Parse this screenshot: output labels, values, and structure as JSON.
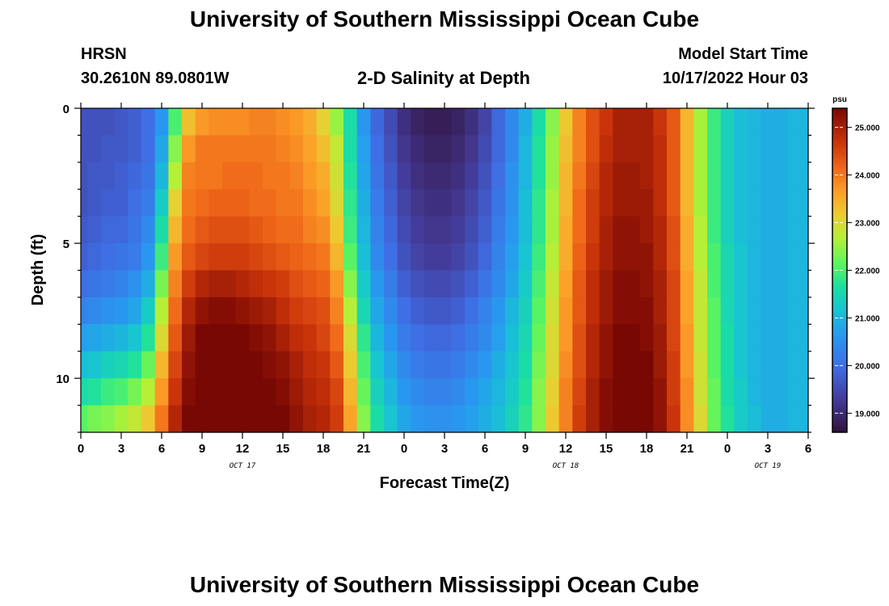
{
  "header": {
    "title": "University of Southern Mississippi Ocean Cube",
    "station": "HRSN",
    "coords": "30.2610N  89.0801W",
    "subtitle": "2-D Salinity at Depth",
    "model_label": "Model Start Time",
    "model_time": "10/17/2022 Hour 03"
  },
  "footer": {
    "title": "University of Southern Mississippi Ocean Cube"
  },
  "chart_data": {
    "type": "heatmap",
    "title": "2-D Salinity at Depth",
    "xlabel": "Forecast Time(Z)",
    "ylabel": "Depth (ft)",
    "x_unit": "hours from Oct 17 00Z",
    "xlim": [
      0,
      54
    ],
    "ylim": [
      0,
      12
    ],
    "x_ticks": [
      {
        "v": 0,
        "label": "0"
      },
      {
        "v": 3,
        "label": "3"
      },
      {
        "v": 6,
        "label": "6"
      },
      {
        "v": 9,
        "label": "9"
      },
      {
        "v": 12,
        "label": "12"
      },
      {
        "v": 15,
        "label": "15"
      },
      {
        "v": 18,
        "label": "18"
      },
      {
        "v": 21,
        "label": "21"
      },
      {
        "v": 24,
        "label": "0"
      },
      {
        "v": 27,
        "label": "3"
      },
      {
        "v": 30,
        "label": "6"
      },
      {
        "v": 33,
        "label": "9"
      },
      {
        "v": 36,
        "label": "12"
      },
      {
        "v": 39,
        "label": "15"
      },
      {
        "v": 42,
        "label": "18"
      },
      {
        "v": 45,
        "label": "21"
      },
      {
        "v": 48,
        "label": "0"
      },
      {
        "v": 51,
        "label": "3"
      },
      {
        "v": 54,
        "label": "6"
      }
    ],
    "date_labels": [
      {
        "v": 12,
        "label": "OCT 17"
      },
      {
        "v": 36,
        "label": "OCT 18"
      },
      {
        "v": 51,
        "label": "OCT 19"
      }
    ],
    "y_ticks": [
      {
        "v": 0,
        "label": "0"
      },
      {
        "v": 5,
        "label": "5"
      },
      {
        "v": 10,
        "label": "10"
      }
    ],
    "colorbar": {
      "unit": "psu",
      "min": 18.6,
      "max": 25.4,
      "ticks": [
        {
          "v": 19.0,
          "label": "19.000"
        },
        {
          "v": 20.0,
          "label": "20.000"
        },
        {
          "v": 21.0,
          "label": "21.000"
        },
        {
          "v": 22.0,
          "label": "22.000"
        },
        {
          "v": 23.0,
          "label": "23.000"
        },
        {
          "v": 24.0,
          "label": "24.000"
        },
        {
          "v": 25.0,
          "label": "25.000"
        }
      ]
    },
    "grid": {
      "x_hours": [
        0,
        1,
        2,
        3,
        4,
        5,
        6,
        7,
        8,
        9,
        10,
        11,
        12,
        13,
        14,
        15,
        16,
        17,
        18,
        19,
        20,
        21,
        22,
        23,
        24,
        25,
        26,
        27,
        28,
        29,
        30,
        31,
        32,
        33,
        34,
        35,
        36,
        37,
        38,
        39,
        40,
        41,
        42,
        43,
        44,
        45,
        46,
        47,
        48,
        49,
        50,
        51,
        52,
        53,
        54
      ],
      "depth_ft": [
        0.5,
        1.5,
        2.5,
        3.5,
        4.5,
        5.5,
        6.5,
        7.5,
        8.5,
        9.5,
        10.5,
        11.5
      ],
      "salinity_psu": [
        [
          19.6,
          19.6,
          19.6,
          19.7,
          19.8,
          20.0,
          20.6,
          22.0,
          23.3,
          23.7,
          23.8,
          23.8,
          23.8,
          23.9,
          23.9,
          23.8,
          23.7,
          23.5,
          23.1,
          22.5,
          21.6,
          20.6,
          19.9,
          19.5,
          19.1,
          18.9,
          18.8,
          18.8,
          18.9,
          19.1,
          19.4,
          19.9,
          20.4,
          20.9,
          21.6,
          22.4,
          23.2,
          23.9,
          24.4,
          24.7,
          25.0,
          25.0,
          25.0,
          24.7,
          24.3,
          23.4,
          22.6,
          21.9,
          21.4,
          21.1,
          21.0,
          20.9,
          20.9,
          21.0,
          21.0
        ],
        [
          19.6,
          19.6,
          19.7,
          19.7,
          19.8,
          20.0,
          20.8,
          22.4,
          23.7,
          24.0,
          24.0,
          24.0,
          24.0,
          24.0,
          24.0,
          23.9,
          23.8,
          23.6,
          23.3,
          22.8,
          21.6,
          20.7,
          20.0,
          19.6,
          19.2,
          19.0,
          18.9,
          18.9,
          19.0,
          19.2,
          19.5,
          19.9,
          20.4,
          21.0,
          21.7,
          22.5,
          23.3,
          23.9,
          24.4,
          24.8,
          25.0,
          25.0,
          25.0,
          24.8,
          24.3,
          23.4,
          22.6,
          21.9,
          21.4,
          21.1,
          21.0,
          20.9,
          20.9,
          21.0,
          21.0
        ],
        [
          19.6,
          19.7,
          19.7,
          19.8,
          19.9,
          20.1,
          21.0,
          22.7,
          23.9,
          24.0,
          24.0,
          24.1,
          24.1,
          24.1,
          24.0,
          24.0,
          23.9,
          23.7,
          23.5,
          22.9,
          21.7,
          20.8,
          20.1,
          19.7,
          19.3,
          19.1,
          19.0,
          19.0,
          19.1,
          19.3,
          19.6,
          20.0,
          20.5,
          21.0,
          21.7,
          22.5,
          23.4,
          24.0,
          24.5,
          24.9,
          25.1,
          25.1,
          25.0,
          24.8,
          24.3,
          23.4,
          22.6,
          21.9,
          21.4,
          21.1,
          21.0,
          20.9,
          20.9,
          21.0,
          21.0
        ],
        [
          19.6,
          19.7,
          19.8,
          19.8,
          20.0,
          20.2,
          21.3,
          23.1,
          24.0,
          24.1,
          24.2,
          24.2,
          24.2,
          24.1,
          24.1,
          24.0,
          24.0,
          23.8,
          23.6,
          23.0,
          21.8,
          20.9,
          20.2,
          19.8,
          19.4,
          19.2,
          19.1,
          19.1,
          19.2,
          19.4,
          19.7,
          20.1,
          20.5,
          21.1,
          21.8,
          22.6,
          23.4,
          24.1,
          24.6,
          24.9,
          25.1,
          25.1,
          25.1,
          24.8,
          24.3,
          23.4,
          22.6,
          21.9,
          21.4,
          21.1,
          21.0,
          20.9,
          20.9,
          21.0,
          21.0
        ],
        [
          19.7,
          19.8,
          19.9,
          19.9,
          20.1,
          20.4,
          21.6,
          23.4,
          24.1,
          24.3,
          24.4,
          24.4,
          24.4,
          24.3,
          24.2,
          24.1,
          24.1,
          23.9,
          23.8,
          23.2,
          21.9,
          21.0,
          20.3,
          19.9,
          19.5,
          19.3,
          19.2,
          19.2,
          19.3,
          19.5,
          19.8,
          20.2,
          20.6,
          21.1,
          21.8,
          22.6,
          23.5,
          24.1,
          24.6,
          25.0,
          25.2,
          25.2,
          25.1,
          24.9,
          24.4,
          23.5,
          22.7,
          21.9,
          21.4,
          21.1,
          21.0,
          20.9,
          20.9,
          21.0,
          21.0
        ],
        [
          19.8,
          19.9,
          20.0,
          20.1,
          20.2,
          20.6,
          21.9,
          23.7,
          24.3,
          24.5,
          24.6,
          24.6,
          24.6,
          24.5,
          24.4,
          24.3,
          24.2,
          24.1,
          24.0,
          23.4,
          22.1,
          21.1,
          20.4,
          20.0,
          19.6,
          19.4,
          19.3,
          19.3,
          19.4,
          19.6,
          19.9,
          20.3,
          20.7,
          21.2,
          21.9,
          22.7,
          23.5,
          24.2,
          24.7,
          25.0,
          25.2,
          25.2,
          25.2,
          24.9,
          24.4,
          23.5,
          22.7,
          22.0,
          21.5,
          21.2,
          21.0,
          20.9,
          20.9,
          21.0,
          21.0
        ],
        [
          20.0,
          20.1,
          20.2,
          20.3,
          20.5,
          20.9,
          22.3,
          23.9,
          24.6,
          24.9,
          25.0,
          25.0,
          24.9,
          24.8,
          24.7,
          24.6,
          24.4,
          24.3,
          24.2,
          23.7,
          22.4,
          21.3,
          20.6,
          20.2,
          19.8,
          19.6,
          19.5,
          19.5,
          19.6,
          19.8,
          20.1,
          20.4,
          20.8,
          21.3,
          22.0,
          22.8,
          23.6,
          24.3,
          24.8,
          25.1,
          25.3,
          25.3,
          25.2,
          25.0,
          24.5,
          23.6,
          22.8,
          22.0,
          21.5,
          21.2,
          21.0,
          20.9,
          20.9,
          21.0,
          21.0
        ],
        [
          20.3,
          20.4,
          20.5,
          20.6,
          20.8,
          21.3,
          22.7,
          24.1,
          24.9,
          25.2,
          25.3,
          25.3,
          25.2,
          25.1,
          25.0,
          24.8,
          24.6,
          24.5,
          24.4,
          23.9,
          22.7,
          21.5,
          20.8,
          20.4,
          20.0,
          19.8,
          19.7,
          19.7,
          19.8,
          20.0,
          20.3,
          20.6,
          21.0,
          21.4,
          22.1,
          22.9,
          23.7,
          24.3,
          24.8,
          25.1,
          25.3,
          25.3,
          25.3,
          25.0,
          24.5,
          23.6,
          22.8,
          22.1,
          21.5,
          21.2,
          21.0,
          20.9,
          20.9,
          21.0,
          21.0
        ],
        [
          20.7,
          20.8,
          20.9,
          21.0,
          21.2,
          21.7,
          23.0,
          24.3,
          25.1,
          25.4,
          25.4,
          25.4,
          25.4,
          25.3,
          25.2,
          25.0,
          24.8,
          24.7,
          24.5,
          24.1,
          23.0,
          21.8,
          21.0,
          20.6,
          20.2,
          20.0,
          19.9,
          19.9,
          20.0,
          20.2,
          20.4,
          20.7,
          21.1,
          21.5,
          22.2,
          23.0,
          23.7,
          24.4,
          24.9,
          25.2,
          25.4,
          25.4,
          25.3,
          25.1,
          24.5,
          23.7,
          22.8,
          22.1,
          21.6,
          21.2,
          21.0,
          20.9,
          20.9,
          21.0,
          21.0
        ],
        [
          21.1,
          21.2,
          21.4,
          21.5,
          21.7,
          22.2,
          23.4,
          24.5,
          25.2,
          25.4,
          25.5,
          25.5,
          25.5,
          25.4,
          25.3,
          25.2,
          25.0,
          24.8,
          24.7,
          24.3,
          23.2,
          22.0,
          21.2,
          20.8,
          20.4,
          20.2,
          20.1,
          20.1,
          20.2,
          20.4,
          20.6,
          20.9,
          21.2,
          21.6,
          22.3,
          23.0,
          23.8,
          24.4,
          24.9,
          25.2,
          25.4,
          25.4,
          25.4,
          25.1,
          24.6,
          23.7,
          22.9,
          22.1,
          21.6,
          21.2,
          21.0,
          20.9,
          20.9,
          21.0,
          21.0
        ],
        [
          21.6,
          21.7,
          21.9,
          22.0,
          22.3,
          22.7,
          23.7,
          24.7,
          25.3,
          25.5,
          25.5,
          25.5,
          25.5,
          25.5,
          25.4,
          25.3,
          25.1,
          24.9,
          24.8,
          24.5,
          23.4,
          22.2,
          21.4,
          21.0,
          20.6,
          20.4,
          20.3,
          20.3,
          20.4,
          20.6,
          20.8,
          21.0,
          21.3,
          21.7,
          22.4,
          23.1,
          23.9,
          24.5,
          25.0,
          25.3,
          25.4,
          25.4,
          25.4,
          25.2,
          24.6,
          23.8,
          22.9,
          22.2,
          21.6,
          21.3,
          21.0,
          20.9,
          20.9,
          21.0,
          21.0
        ],
        [
          22.1,
          22.3,
          22.4,
          22.6,
          22.8,
          23.2,
          24.0,
          24.9,
          25.4,
          25.5,
          25.6,
          25.6,
          25.6,
          25.6,
          25.5,
          25.4,
          25.2,
          25.0,
          24.9,
          24.6,
          23.6,
          22.4,
          21.6,
          21.2,
          20.8,
          20.6,
          20.5,
          20.5,
          20.6,
          20.7,
          20.9,
          21.1,
          21.4,
          21.8,
          22.4,
          23.2,
          23.9,
          24.6,
          25.0,
          25.3,
          25.5,
          25.5,
          25.4,
          25.2,
          24.7,
          23.8,
          23.0,
          22.2,
          21.7,
          21.3,
          21.1,
          20.9,
          20.9,
          21.0,
          21.0
        ]
      ]
    }
  }
}
